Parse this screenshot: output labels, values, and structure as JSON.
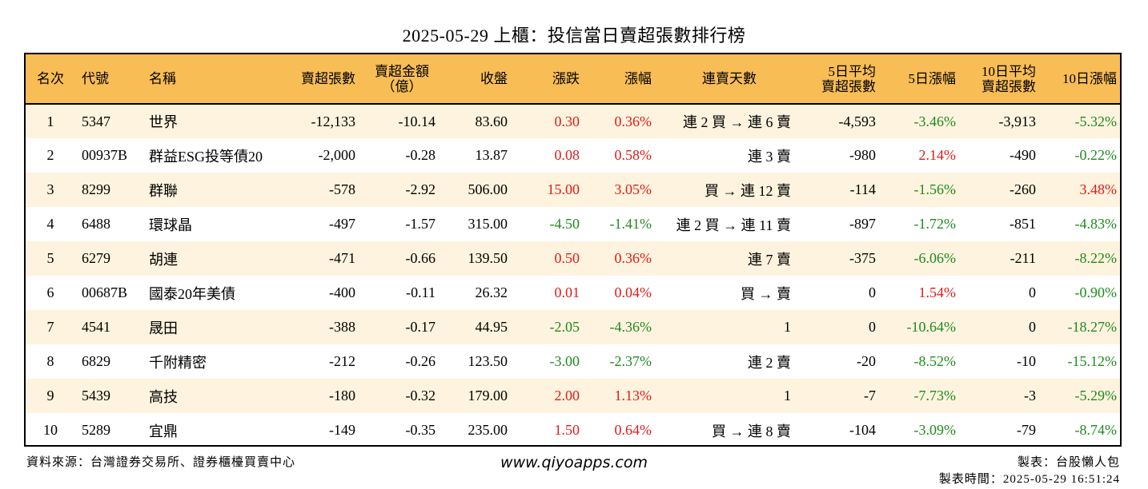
{
  "title": "2025-05-29 上櫃：投信當日賣超張數排行榜",
  "headers": {
    "rank": "名次",
    "code": "代號",
    "name": "名稱",
    "sell_lots": "賣超張數",
    "amount_line1": "賣超金額",
    "amount_line2": "（億）",
    "close": "收盤",
    "change": "漲跌",
    "change_pct": "漲幅",
    "streak": "連賣天數",
    "avg5_line1": "5日平均",
    "avg5_line2": "賣超張數",
    "pct5": "5日漲幅",
    "avg10_line1": "10日平均",
    "avg10_line2": "賣超張數",
    "pct10": "10日漲幅"
  },
  "rows": [
    {
      "rank": "1",
      "code": "5347",
      "name": "世界",
      "sell_lots": "-12,133",
      "amount": "-10.14",
      "close": "83.60",
      "change": "0.30",
      "change_pct": "0.36%",
      "streak": "連 2 買 → 連 6 賣",
      "avg5": "-4,593",
      "pct5": "-3.46%",
      "avg10": "-3,913",
      "pct10": "-5.32%"
    },
    {
      "rank": "2",
      "code": "00937B",
      "name": "群益ESG投等債20",
      "sell_lots": "-2,000",
      "amount": "-0.28",
      "close": "13.87",
      "change": "0.08",
      "change_pct": "0.58%",
      "streak": "連 3 賣",
      "avg5": "-980",
      "pct5": "2.14%",
      "avg10": "-490",
      "pct10": "-0.22%"
    },
    {
      "rank": "3",
      "code": "8299",
      "name": "群聯",
      "sell_lots": "-578",
      "amount": "-2.92",
      "close": "506.00",
      "change": "15.00",
      "change_pct": "3.05%",
      "streak": "買 → 連 12 賣",
      "avg5": "-114",
      "pct5": "-1.56%",
      "avg10": "-260",
      "pct10": "3.48%"
    },
    {
      "rank": "4",
      "code": "6488",
      "name": "環球晶",
      "sell_lots": "-497",
      "amount": "-1.57",
      "close": "315.00",
      "change": "-4.50",
      "change_pct": "-1.41%",
      "streak": "連 2 買 → 連 11 賣",
      "avg5": "-897",
      "pct5": "-1.72%",
      "avg10": "-851",
      "pct10": "-4.83%"
    },
    {
      "rank": "5",
      "code": "6279",
      "name": "胡連",
      "sell_lots": "-471",
      "amount": "-0.66",
      "close": "139.50",
      "change": "0.50",
      "change_pct": "0.36%",
      "streak": "連 7 賣",
      "avg5": "-375",
      "pct5": "-6.06%",
      "avg10": "-211",
      "pct10": "-8.22%"
    },
    {
      "rank": "6",
      "code": "00687B",
      "name": "國泰20年美債",
      "sell_lots": "-400",
      "amount": "-0.11",
      "close": "26.32",
      "change": "0.01",
      "change_pct": "0.04%",
      "streak": "買 → 賣",
      "avg5": "0",
      "pct5": "1.54%",
      "avg10": "0",
      "pct10": "-0.90%"
    },
    {
      "rank": "7",
      "code": "4541",
      "name": "晟田",
      "sell_lots": "-388",
      "amount": "-0.17",
      "close": "44.95",
      "change": "-2.05",
      "change_pct": "-4.36%",
      "streak": "1",
      "avg5": "0",
      "pct5": "-10.64%",
      "avg10": "0",
      "pct10": "-18.27%"
    },
    {
      "rank": "8",
      "code": "6829",
      "name": "千附精密",
      "sell_lots": "-212",
      "amount": "-0.26",
      "close": "123.50",
      "change": "-3.00",
      "change_pct": "-2.37%",
      "streak": "連 2 賣",
      "avg5": "-20",
      "pct5": "-8.52%",
      "avg10": "-10",
      "pct10": "-15.12%"
    },
    {
      "rank": "9",
      "code": "5439",
      "name": "高技",
      "sell_lots": "-180",
      "amount": "-0.32",
      "close": "179.00",
      "change": "2.00",
      "change_pct": "1.13%",
      "streak": "1",
      "avg5": "-7",
      "pct5": "-7.73%",
      "avg10": "-3",
      "pct10": "-5.29%"
    },
    {
      "rank": "10",
      "code": "5289",
      "name": "宜鼎",
      "sell_lots": "-149",
      "amount": "-0.35",
      "close": "235.00",
      "change": "1.50",
      "change_pct": "0.64%",
      "streak": "買 → 連 8 賣",
      "avg5": "-104",
      "pct5": "-3.09%",
      "avg10": "-79",
      "pct10": "-8.74%"
    }
  ],
  "footer": {
    "source": "資料來源：台灣證券交易所、證券櫃檯買賣中心",
    "website": "www.qiyoapps.com",
    "author": "製表：台股懶人包",
    "made_time": "製表時間：2025-05-29 16:51:24"
  },
  "colors": {
    "header_bg": "#f8bd55",
    "stripe_bg": "#fdf3de",
    "up": "#e01b1b",
    "down": "#1f8a1f"
  }
}
